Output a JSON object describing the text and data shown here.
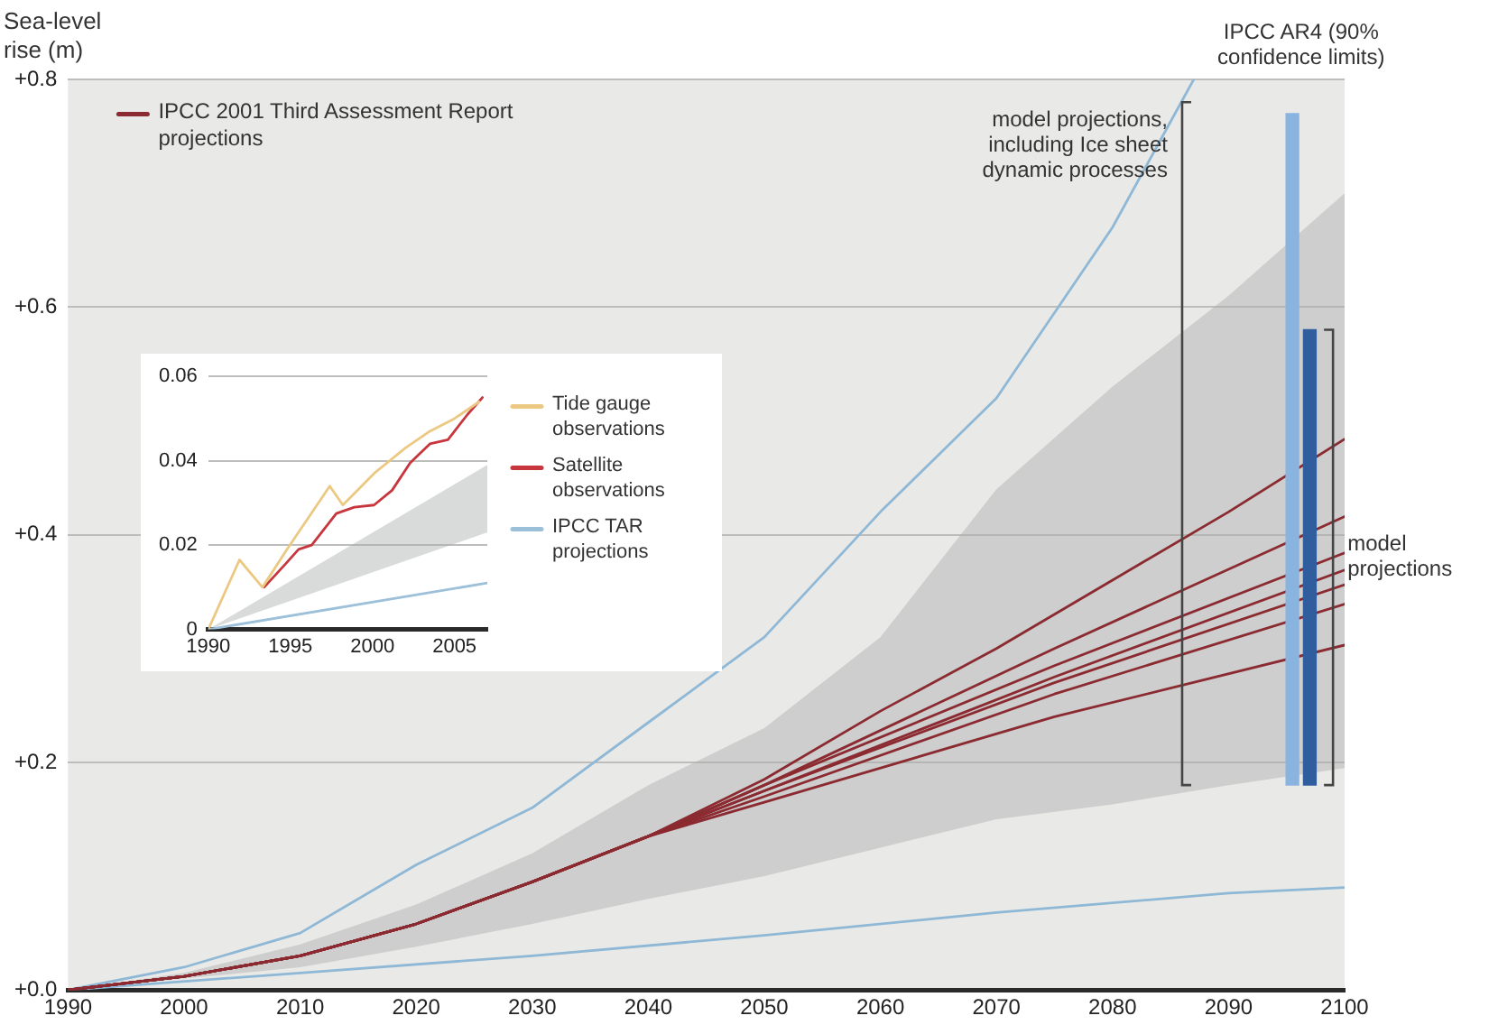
{
  "chart_data": [
    {
      "type": "line",
      "ylabel": "Sea-level rise (m)",
      "xlim": [
        1990,
        2100
      ],
      "xticks": [
        1990,
        2000,
        2010,
        2020,
        2030,
        2040,
        2050,
        2060,
        2070,
        2080,
        2090,
        2100
      ],
      "ylim": [
        0,
        0.8
      ],
      "yticks": [
        {
          "value": 0,
          "label": "+0.0"
        },
        {
          "value": 0.2,
          "label": "+0.2"
        },
        {
          "value": 0.4,
          "label": "+0.4"
        },
        {
          "value": 0.6,
          "label": "+0.6"
        },
        {
          "value": 0.8,
          "label": "+0.8"
        }
      ],
      "grid": "y",
      "legend": "top left",
      "marker": "none",
      "line_style": "solid",
      "series": [
        {
          "name": "IPCC 2001 Third Assessment Report projections",
          "color": "#8b2a30",
          "x": [
            1990,
            2000,
            2010,
            2020,
            2030,
            2040,
            2050,
            2060,
            2070,
            2080,
            2090,
            2100
          ],
          "values": [
            0,
            0.012,
            0.03,
            0.058,
            0.095,
            0.135,
            0.185,
            0.245,
            0.3,
            0.36,
            0.42,
            0.484
          ],
          "lower": [
            0,
            0.01,
            0.02,
            0.038,
            0.058,
            0.08,
            0.1,
            0.125,
            0.15,
            0.163,
            0.18,
            0.195
          ],
          "upper": [
            0,
            0.015,
            0.04,
            0.075,
            0.12,
            0.18,
            0.23,
            0.31,
            0.44,
            0.53,
            0.61,
            0.7
          ]
        },
        {
          "color": "#8b2a30",
          "x": [
            1990,
            2000,
            2010,
            2020,
            2030,
            2040,
            2050,
            2075,
            2100
          ],
          "values": [
            0,
            0.012,
            0.03,
            0.058,
            0.095,
            0.135,
            0.18,
            0.3,
            0.416
          ]
        },
        {
          "color": "#8b2a30",
          "x": [
            1990,
            2000,
            2010,
            2020,
            2030,
            2040,
            2050,
            2075,
            2100
          ],
          "values": [
            0,
            0.012,
            0.03,
            0.058,
            0.095,
            0.135,
            0.18,
            0.285,
            0.384
          ]
        },
        {
          "color": "#8b2a30",
          "x": [
            1990,
            2000,
            2010,
            2020,
            2030,
            2040,
            2050,
            2075,
            2100
          ],
          "values": [
            0,
            0.012,
            0.03,
            0.058,
            0.095,
            0.135,
            0.175,
            0.275,
            0.369
          ]
        },
        {
          "color": "#8b2a30",
          "x": [
            1990,
            2000,
            2010,
            2020,
            2030,
            2040,
            2050,
            2075,
            2100
          ],
          "values": [
            0,
            0.012,
            0.03,
            0.058,
            0.095,
            0.135,
            0.175,
            0.27,
            0.356
          ]
        },
        {
          "color": "#8b2a30",
          "x": [
            1990,
            2000,
            2010,
            2020,
            2030,
            2040,
            2050,
            2075,
            2100
          ],
          "values": [
            0,
            0.012,
            0.03,
            0.058,
            0.095,
            0.135,
            0.17,
            0.26,
            0.339
          ]
        },
        {
          "color": "#8b2a30",
          "x": [
            1990,
            2000,
            2010,
            2020,
            2030,
            2040,
            2050,
            2075,
            2100
          ],
          "values": [
            0,
            0.012,
            0.03,
            0.058,
            0.095,
            0.135,
            0.165,
            0.24,
            0.303
          ]
        },
        {
          "color": "#8fb8d6",
          "x": [
            1990,
            2000,
            2010,
            2020,
            2030,
            2040,
            2050,
            2060,
            2070,
            2080,
            2087
          ],
          "values": [
            0,
            0.02,
            0.05,
            0.11,
            0.16,
            0.235,
            0.31,
            0.42,
            0.52,
            0.67,
            0.8
          ]
        },
        {
          "color": "#8fb8d6",
          "x": [
            1990,
            2010,
            2030,
            2050,
            2070,
            2090,
            2100
          ],
          "values": [
            0,
            0.015,
            0.03,
            0.048,
            0.068,
            0.085,
            0.09
          ]
        },
        {
          "type": "bar",
          "x": [
            2095.5,
            2097
          ],
          "base": [
            0.18,
            0.18
          ],
          "values": [
            0.59,
            0.4
          ],
          "colors": [
            "#8ab4e0",
            "#2f5d9e"
          ]
        }
      ],
      "annotations": [
        "IPCC AR4 (90% confidence limits)",
        {
          "text": "model projections, including Ice sheet dynamic processes",
          "x": 2086,
          "y": 0.78
        },
        {
          "text": "model projections",
          "x": 2099,
          "y": 0.38
        }
      ]
    },
    {
      "type": "line",
      "xlim": [
        1990,
        2007
      ],
      "xticks": [
        1990,
        1995,
        2000,
        2005
      ],
      "ylim": [
        0,
        0.06
      ],
      "yticks": [
        0,
        0.02,
        0.04,
        0.06
      ],
      "grid": "y",
      "legend": "right",
      "marker": "none",
      "line_style": "solid",
      "series": [
        {
          "name": "Tide gauge observations",
          "color": "#ecc983",
          "x": [
            1990,
            1991.9,
            1993.3,
            1994.8,
            1997.4,
            1998.2,
            2000.1,
            2002,
            2003.5,
            2005,
            2006.5
          ],
          "values": [
            0,
            0.0165,
            0.01,
            0.019,
            0.034,
            0.0295,
            0.037,
            0.043,
            0.047,
            0.05,
            0.054
          ]
        },
        {
          "name": "Satellite observations",
          "color": "#c8363d",
          "x": [
            1993.4,
            1994.7,
            1995.5,
            1996.3,
            1997.8,
            1998.9,
            2000.1,
            2001.2,
            2002.3,
            2003.5,
            2004.6,
            2005.8,
            2006.7
          ],
          "values": [
            0.01,
            0.0155,
            0.019,
            0.02,
            0.0275,
            0.029,
            0.0295,
            0.033,
            0.0395,
            0.044,
            0.045,
            0.051,
            0.055
          ]
        },
        {
          "name": "IPCC TAR projections",
          "color": "#9cc0da",
          "x": [
            1990,
            2007
          ],
          "values": [
            0,
            0.011
          ],
          "lower": [
            0,
            0.023
          ],
          "upper": [
            0,
            0.039
          ]
        }
      ]
    }
  ]
}
